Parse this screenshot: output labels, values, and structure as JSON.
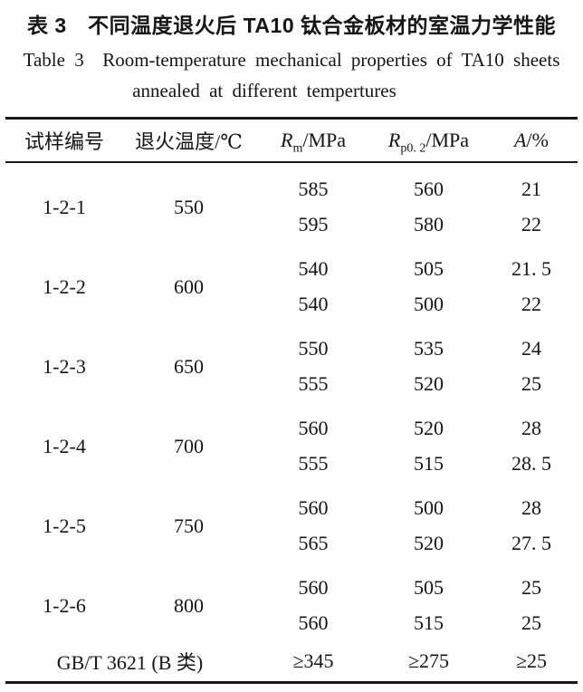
{
  "title_zh": "表 3　不同温度退火后 TA10 钛合金板材的室温力学性能",
  "caption_en": {
    "line1": "Table 3  Room-temperature mechanical properties of TA10 sheets",
    "line2": "annealed at different tempertures"
  },
  "table": {
    "headers": {
      "sample": "试样编号",
      "temperature": "退火温度/℃",
      "rm": {
        "symbol": "R",
        "sub": "m",
        "suffix": "/MPa"
      },
      "rp": {
        "symbol": "R",
        "sub": "p0. 2",
        "suffix": "/MPa"
      },
      "a": {
        "symbol": "A",
        "suffix": "/%"
      }
    },
    "groups": [
      {
        "sample": "1-2-1",
        "temp": "550",
        "rows": [
          {
            "rm": "585",
            "rp": "560",
            "a": "21"
          },
          {
            "rm": "595",
            "rp": "580",
            "a": "22"
          }
        ]
      },
      {
        "sample": "1-2-2",
        "temp": "600",
        "rows": [
          {
            "rm": "540",
            "rp": "505",
            "a": "21. 5"
          },
          {
            "rm": "540",
            "rp": "500",
            "a": "22"
          }
        ]
      },
      {
        "sample": "1-2-3",
        "temp": "650",
        "rows": [
          {
            "rm": "550",
            "rp": "535",
            "a": "24"
          },
          {
            "rm": "555",
            "rp": "520",
            "a": "25"
          }
        ]
      },
      {
        "sample": "1-2-4",
        "temp": "700",
        "rows": [
          {
            "rm": "560",
            "rp": "520",
            "a": "28"
          },
          {
            "rm": "555",
            "rp": "515",
            "a": "28. 5"
          }
        ]
      },
      {
        "sample": "1-2-5",
        "temp": "750",
        "rows": [
          {
            "rm": "560",
            "rp": "500",
            "a": "28"
          },
          {
            "rm": "565",
            "rp": "520",
            "a": "27. 5"
          }
        ]
      },
      {
        "sample": "1-2-6",
        "temp": "800",
        "rows": [
          {
            "rm": "560",
            "rp": "505",
            "a": "25"
          },
          {
            "rm": "560",
            "rp": "515",
            "a": "25"
          }
        ]
      }
    ],
    "standard_row": {
      "label": "GB/T 3621 (B 类)",
      "rm": "≥345",
      "rp": "≥275",
      "a": "≥25"
    }
  }
}
